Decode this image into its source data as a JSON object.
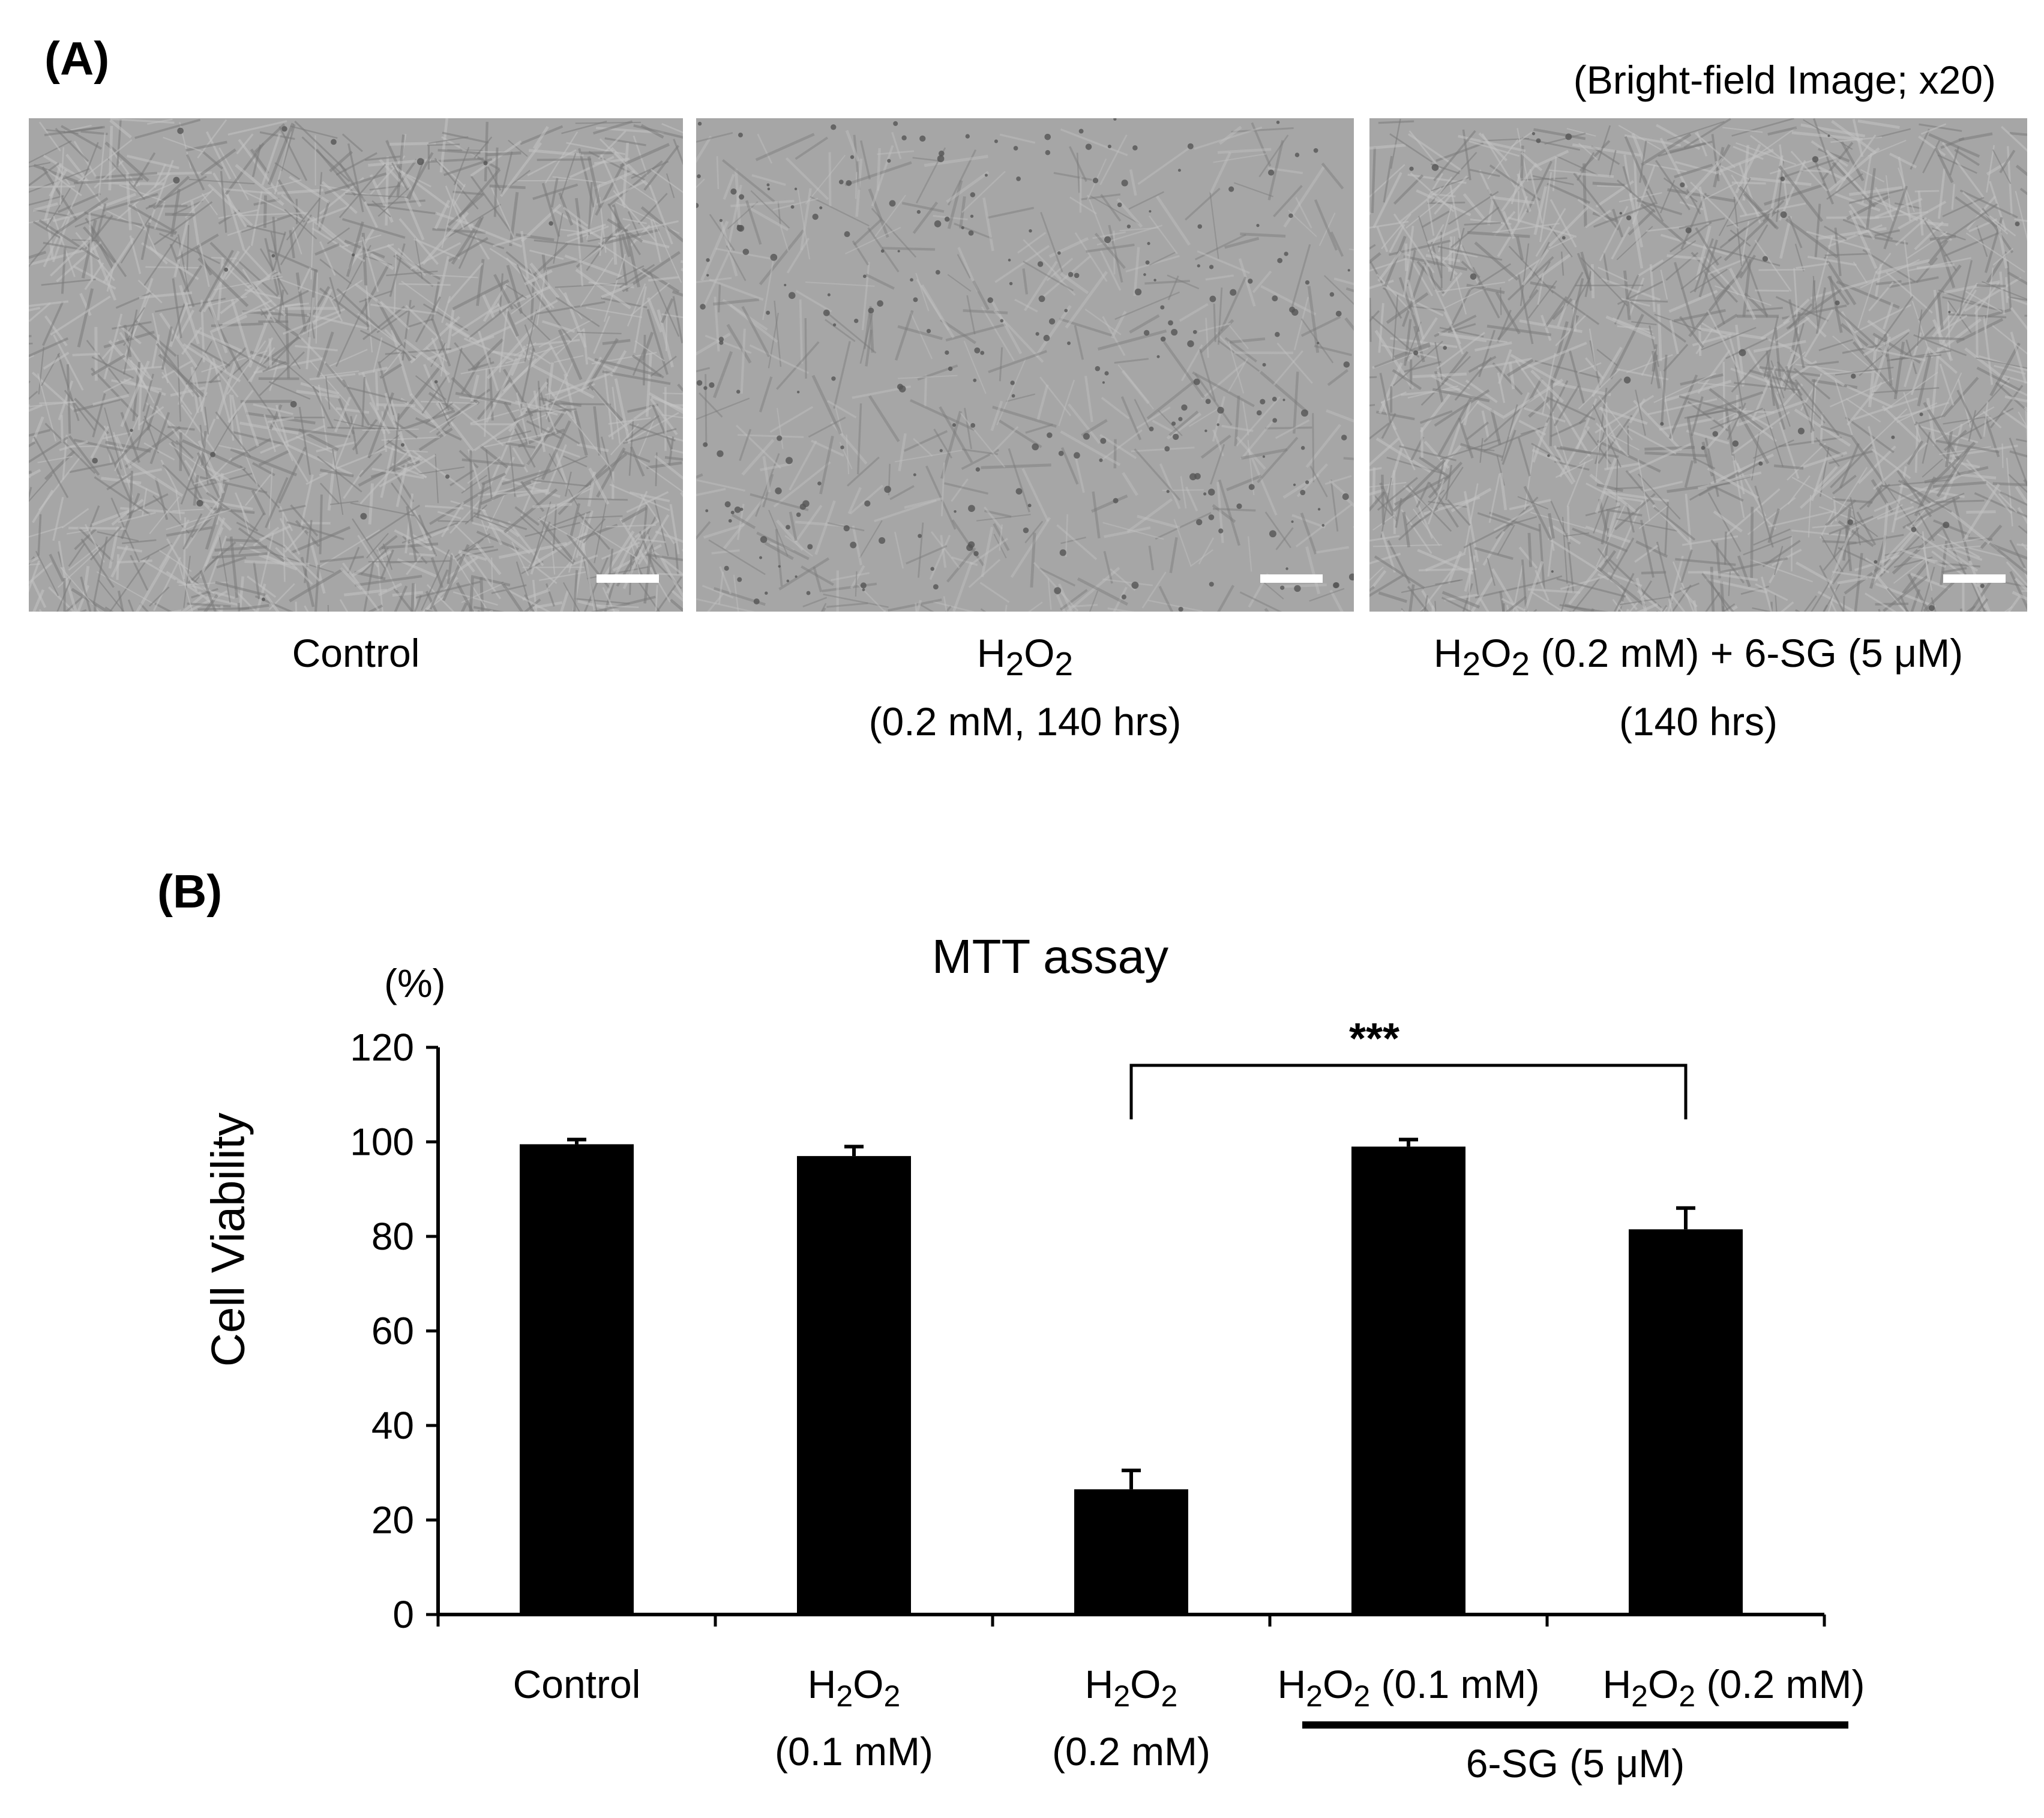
{
  "panel_a": {
    "label": "(A)",
    "note": "(Bright-field Image; x20)",
    "images": [
      {
        "caption_line1": "Control",
        "caption_line2": ""
      },
      {
        "caption_base": "H",
        "caption_sub1": "2",
        "caption_mid": "O",
        "caption_sub2": "2",
        "caption_rest": "",
        "caption_line2": "(0.2 mM, 140 hrs)"
      },
      {
        "caption_base": "H",
        "caption_sub1": "2",
        "caption_mid": "O",
        "caption_sub2": "2",
        "caption_rest": " (0.2 mM) + 6-SG (5 μM)",
        "caption_line2": "(140 hrs)"
      }
    ]
  },
  "panel_b": {
    "label": "(B)",
    "group_bracket_label": "6-SG (5 μM)",
    "significance": "***"
  },
  "chart_data": {
    "type": "bar",
    "title": "MTT assay",
    "ylabel": "Cell Viability",
    "yunit": "(%)",
    "ylim": [
      0,
      120
    ],
    "yticks": [
      0,
      20,
      40,
      60,
      80,
      100,
      120
    ],
    "categories": [
      {
        "line1_base": "Control",
        "line1_sub": "",
        "line1_base2": "",
        "line1_sub2": "",
        "line1_rest": "",
        "line2": ""
      },
      {
        "line1_base": "H",
        "line1_sub": "2",
        "line1_base2": "O",
        "line1_sub2": "2",
        "line1_rest": "",
        "line2": "(0.1 mM)"
      },
      {
        "line1_base": "H",
        "line1_sub": "2",
        "line1_base2": "O",
        "line1_sub2": "2",
        "line1_rest": "",
        "line2": "(0.2 mM)"
      },
      {
        "line1_base": "H",
        "line1_sub": "2",
        "line1_base2": "O",
        "line1_sub2": "2",
        "line1_rest": " (0.1 mM)",
        "line2": ""
      },
      {
        "line1_base": "H",
        "line1_sub": "2",
        "line1_base2": "O",
        "line1_sub2": "2",
        "line1_rest": " (0.2 mM)",
        "line2": ""
      }
    ],
    "values": [
      99.5,
      97,
      26.5,
      99,
      81.5
    ],
    "errors": [
      1,
      2,
      4,
      1.5,
      4.5
    ],
    "bar_color": "#000000",
    "significance_pair": [
      2,
      4
    ],
    "grid": false,
    "legend": "none"
  }
}
